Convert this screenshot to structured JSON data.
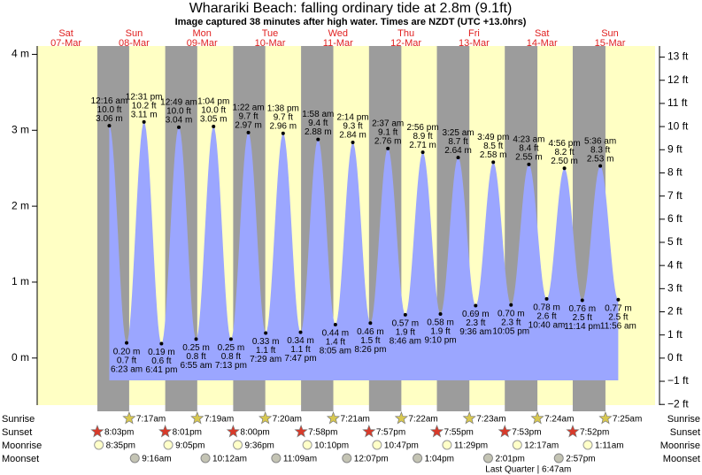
{
  "chart_data": {
    "type": "tide",
    "title": "Wharariki Beach: falling  ordinary tide at 2.8m (9.1ft)",
    "subtitle": "Image captured 38 minutes after high water. Times are NZDT (UTC +13.0hrs)",
    "ylim": [
      -0.62,
      4.11
    ],
    "yticks": [
      {
        "value": 4,
        "label": "4 m"
      },
      {
        "value": 3,
        "label": "3 m"
      },
      {
        "value": 2,
        "label": "2 m"
      },
      {
        "value": 1,
        "label": "1 m"
      },
      {
        "value": 0,
        "label": "0 m"
      }
    ],
    "y2lim": [
      -2.03,
      13.48
    ],
    "y2ticks": [
      {
        "value": 13,
        "label": "13 ft"
      },
      {
        "value": 12,
        "label": "12 ft"
      },
      {
        "value": 11,
        "label": "11 ft"
      },
      {
        "value": 10,
        "label": "10 ft"
      },
      {
        "value": 9,
        "label": "9 ft"
      },
      {
        "value": 8,
        "label": "8 ft"
      },
      {
        "value": 7,
        "label": "7 ft"
      },
      {
        "value": 6,
        "label": "6 ft"
      },
      {
        "value": 5,
        "label": "5 ft"
      },
      {
        "value": 4,
        "label": "4 ft"
      },
      {
        "value": 3,
        "label": "3 ft"
      },
      {
        "value": 2,
        "label": "2 ft"
      },
      {
        "value": 1,
        "label": "1 ft"
      },
      {
        "value": 0,
        "label": "0 ft"
      },
      {
        "value": -1,
        "label": "−1 ft"
      },
      {
        "value": -2,
        "label": "−2 ft"
      }
    ],
    "row_labels": {
      "sunrise": "Sunrise",
      "sunset": "Sunset",
      "moonrise": "Moonrise",
      "moonset": "Moonset"
    },
    "days": [
      {
        "weekday": "Sat",
        "date": "07-Mar",
        "sunrise": null,
        "sunset": "8:03pm",
        "moonrise": "8:35pm",
        "moonset": null,
        "tides": []
      },
      {
        "weekday": "Sun",
        "date": "08-Mar",
        "sunrise": "7:17am",
        "sunset": "8:01pm",
        "moonrise": "9:05pm",
        "moonset": "9:16am",
        "tides": [
          {
            "time": "12:16 am",
            "height": 3.06,
            "height_label": "3.06 m",
            "feet": "10.0 ft",
            "kind": "high"
          },
          {
            "time": "6:23 am",
            "height": 0.2,
            "height_label": "0.20 m",
            "feet": "0.7 ft",
            "kind": "low"
          },
          {
            "time": "12:31 pm",
            "height": 3.11,
            "height_label": "3.11 m",
            "feet": "10.2 ft",
            "kind": "high"
          },
          {
            "time": "6:41 pm",
            "height": 0.19,
            "height_label": "0.19 m",
            "feet": "0.6 ft",
            "kind": "low"
          }
        ]
      },
      {
        "weekday": "Mon",
        "date": "09-Mar",
        "sunrise": "7:19am",
        "sunset": "8:00pm",
        "moonrise": "9:36pm",
        "moonset": "10:12am",
        "tides": [
          {
            "time": "12:49 am",
            "height": 3.04,
            "height_label": "3.04 m",
            "feet": "10.0 ft",
            "kind": "high"
          },
          {
            "time": "6:55 am",
            "height": 0.25,
            "height_label": "0.25 m",
            "feet": "0.8 ft",
            "kind": "low"
          },
          {
            "time": "1:04 pm",
            "height": 3.05,
            "height_label": "3.05 m",
            "feet": "10.0 ft",
            "kind": "high"
          },
          {
            "time": "7:13 pm",
            "height": 0.25,
            "height_label": "0.25 m",
            "feet": "0.8 ft",
            "kind": "low"
          }
        ]
      },
      {
        "weekday": "Tue",
        "date": "10-Mar",
        "sunrise": "7:20am",
        "sunset": "7:58pm",
        "moonrise": "10:10pm",
        "moonset": "11:09am",
        "tides": [
          {
            "time": "1:22 am",
            "height": 2.97,
            "height_label": "2.97 m",
            "feet": "9.7 ft",
            "kind": "high"
          },
          {
            "time": "7:29 am",
            "height": 0.33,
            "height_label": "0.33 m",
            "feet": "1.1 ft",
            "kind": "low"
          },
          {
            "time": "1:38 pm",
            "height": 2.96,
            "height_label": "2.96 m",
            "feet": "9.7 ft",
            "kind": "high"
          },
          {
            "time": "7:47 pm",
            "height": 0.34,
            "height_label": "0.34 m",
            "feet": "1.1 ft",
            "kind": "low"
          }
        ]
      },
      {
        "weekday": "Wed",
        "date": "11-Mar",
        "sunrise": "7:21am",
        "sunset": "7:57pm",
        "moonrise": "10:47pm",
        "moonset": "12:07pm",
        "tides": [
          {
            "time": "1:58 am",
            "height": 2.88,
            "height_label": "2.88 m",
            "feet": "9.4 ft",
            "kind": "high"
          },
          {
            "time": "8:05 am",
            "height": 0.44,
            "height_label": "0.44 m",
            "feet": "1.4 ft",
            "kind": "low"
          },
          {
            "time": "2:14 pm",
            "height": 2.84,
            "height_label": "2.84 m",
            "feet": "9.3 ft",
            "kind": "high"
          },
          {
            "time": "8:26 pm",
            "height": 0.46,
            "height_label": "0.46 m",
            "feet": "1.5 ft",
            "kind": "low"
          }
        ]
      },
      {
        "weekday": "Thu",
        "date": "12-Mar",
        "sunrise": "7:22am",
        "sunset": "7:55pm",
        "moonrise": "11:29pm",
        "moonset": "1:04pm",
        "tides": [
          {
            "time": "2:37 am",
            "height": 2.76,
            "height_label": "2.76 m",
            "feet": "9.1 ft",
            "kind": "high"
          },
          {
            "time": "8:46 am",
            "height": 0.57,
            "height_label": "0.57 m",
            "feet": "1.9 ft",
            "kind": "low"
          },
          {
            "time": "2:56 pm",
            "height": 2.71,
            "height_label": "2.71 m",
            "feet": "8.9 ft",
            "kind": "high"
          },
          {
            "time": "9:10 pm",
            "height": 0.58,
            "height_label": "0.58 m",
            "feet": "1.9 ft",
            "kind": "low"
          }
        ]
      },
      {
        "weekday": "Fri",
        "date": "13-Mar",
        "sunrise": "7:23am",
        "sunset": "7:53pm",
        "moonrise": null,
        "moonset": "2:01pm",
        "moon_phase": "Last Quarter | 6:47am",
        "tides": [
          {
            "time": "3:25 am",
            "height": 2.64,
            "height_label": "2.64 m",
            "feet": "8.7 ft",
            "kind": "high"
          },
          {
            "time": "9:36 am",
            "height": 0.69,
            "height_label": "0.69 m",
            "feet": "2.3 ft",
            "kind": "low"
          },
          {
            "time": "3:49 pm",
            "height": 2.58,
            "height_label": "2.58 m",
            "feet": "8.5 ft",
            "kind": "high"
          },
          {
            "time": "10:05 pm",
            "height": 0.7,
            "height_label": "0.70 m",
            "feet": "2.3 ft",
            "kind": "low"
          }
        ]
      },
      {
        "weekday": "Sat",
        "date": "14-Mar",
        "sunrise": "7:24am",
        "sunset": "7:52pm",
        "moonrise": "12:17am",
        "moonset": "2:57pm",
        "tides": [
          {
            "time": "4:23 am",
            "height": 2.55,
            "height_label": "2.55 m",
            "feet": "8.4 ft",
            "kind": "high"
          },
          {
            "time": "10:40 am",
            "height": 0.78,
            "height_label": "0.78 m",
            "feet": "2.6 ft",
            "kind": "low"
          },
          {
            "time": "4:56 pm",
            "height": 2.5,
            "height_label": "2.50 m",
            "feet": "8.2 ft",
            "kind": "high"
          },
          {
            "time": "11:14 pm",
            "height": 0.76,
            "height_label": "0.76 m",
            "feet": "2.5 ft",
            "kind": "low"
          }
        ]
      },
      {
        "weekday": "Sun",
        "date": "15-Mar",
        "sunrise": "7:25am",
        "sunset": null,
        "moonrise": "1:11am",
        "moonset": null,
        "tides": [
          {
            "time": "5:36 am",
            "height": 2.53,
            "height_label": "2.53 m",
            "feet": "8.3 ft",
            "kind": "high"
          },
          {
            "time": "11:56 am",
            "height": 0.77,
            "height_label": "0.77 m",
            "feet": "2.5 ft",
            "kind": "low"
          }
        ]
      }
    ]
  }
}
